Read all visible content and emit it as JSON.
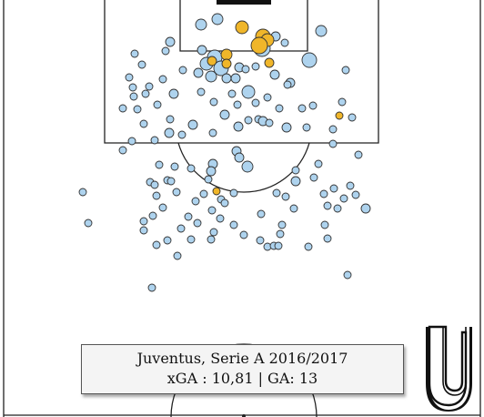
{
  "caption": {
    "title": "Juventus, Serie A 2016/2017",
    "stats": "xGA : 10,81 | GA: 13"
  },
  "colors": {
    "no_goal": "#aed3ee",
    "goal": "#f0b62a",
    "outline": "#333333",
    "pitch_line": "#222222"
  },
  "logo": {
    "icon": "juventus-u-icon"
  },
  "chart_data": {
    "type": "scatter",
    "title": "Juventus, Serie A 2016/2017",
    "series": [
      {
        "name": "",
        "outcome": "no goal",
        "points": [
          {
            "x": 221,
            "y": 27,
            "r": 6
          },
          {
            "x": 239,
            "y": 21,
            "r": 6
          },
          {
            "x": 313,
            "y": 47,
            "r": 4
          },
          {
            "x": 303,
            "y": 40,
            "r": 5
          },
          {
            "x": 353,
            "y": 34,
            "r": 6
          },
          {
            "x": 187,
            "y": 46,
            "r": 5
          },
          {
            "x": 182,
            "y": 56,
            "r": 4
          },
          {
            "x": 148,
            "y": 59,
            "r": 4
          },
          {
            "x": 156,
            "y": 71,
            "r": 4
          },
          {
            "x": 340,
            "y": 66,
            "r": 8
          },
          {
            "x": 288,
            "y": 53,
            "r": 9
          },
          {
            "x": 236,
            "y": 63,
            "r": 8
          },
          {
            "x": 227,
            "y": 70,
            "r": 7
          },
          {
            "x": 222,
            "y": 55,
            "r": 5
          },
          {
            "x": 243,
            "y": 75,
            "r": 8
          },
          {
            "x": 232,
            "y": 84,
            "r": 6
          },
          {
            "x": 218,
            "y": 80,
            "r": 5
          },
          {
            "x": 263,
            "y": 74,
            "r": 5
          },
          {
            "x": 270,
            "y": 76,
            "r": 4
          },
          {
            "x": 281,
            "y": 73,
            "r": 4
          },
          {
            "x": 259,
            "y": 86,
            "r": 5
          },
          {
            "x": 249,
            "y": 86,
            "r": 5
          },
          {
            "x": 273,
            "y": 101,
            "r": 7
          },
          {
            "x": 255,
            "y": 103,
            "r": 4
          },
          {
            "x": 302,
            "y": 82,
            "r": 5
          },
          {
            "x": 319,
            "y": 91,
            "r": 5
          },
          {
            "x": 316,
            "y": 93,
            "r": 4
          },
          {
            "x": 380,
            "y": 77,
            "r": 4
          },
          {
            "x": 142,
            "y": 85,
            "r": 4
          },
          {
            "x": 179,
            "y": 87,
            "r": 4
          },
          {
            "x": 201,
            "y": 77,
            "r": 4
          },
          {
            "x": 164,
            "y": 95,
            "r": 4
          },
          {
            "x": 146,
            "y": 96,
            "r": 4
          },
          {
            "x": 191,
            "y": 103,
            "r": 5
          },
          {
            "x": 221,
            "y": 101,
            "r": 4
          },
          {
            "x": 160,
            "y": 103,
            "r": 4
          },
          {
            "x": 147,
            "y": 106,
            "r": 4
          },
          {
            "x": 173,
            "y": 115,
            "r": 4
          },
          {
            "x": 135,
            "y": 119,
            "r": 4
          },
          {
            "x": 151,
            "y": 120,
            "r": 4
          },
          {
            "x": 235,
            "y": 112,
            "r": 4
          },
          {
            "x": 261,
            "y": 115,
            "r": 4
          },
          {
            "x": 281,
            "y": 113,
            "r": 4
          },
          {
            "x": 294,
            "y": 107,
            "r": 4
          },
          {
            "x": 307,
            "y": 119,
            "r": 4
          },
          {
            "x": 332,
            "y": 119,
            "r": 4
          },
          {
            "x": 344,
            "y": 116,
            "r": 4
          },
          {
            "x": 376,
            "y": 112,
            "r": 4
          },
          {
            "x": 387,
            "y": 129,
            "r": 4
          },
          {
            "x": 247,
            "y": 126,
            "r": 5
          },
          {
            "x": 284,
            "y": 131,
            "r": 4
          },
          {
            "x": 289,
            "y": 133,
            "r": 5
          },
          {
            "x": 296,
            "y": 135,
            "r": 4
          },
          {
            "x": 273,
            "y": 132,
            "r": 4
          },
          {
            "x": 262,
            "y": 139,
            "r": 5
          },
          {
            "x": 315,
            "y": 140,
            "r": 5
          },
          {
            "x": 337,
            "y": 140,
            "r": 4
          },
          {
            "x": 366,
            "y": 142,
            "r": 4
          },
          {
            "x": 158,
            "y": 136,
            "r": 4
          },
          {
            "x": 187,
            "y": 131,
            "r": 4
          },
          {
            "x": 212,
            "y": 137,
            "r": 5
          },
          {
            "x": 234,
            "y": 146,
            "r": 4
          },
          {
            "x": 186,
            "y": 146,
            "r": 5
          },
          {
            "x": 200,
            "y": 148,
            "r": 4
          },
          {
            "x": 170,
            "y": 154,
            "r": 4
          },
          {
            "x": 145,
            "y": 155,
            "r": 4
          },
          {
            "x": 135,
            "y": 165,
            "r": 4
          },
          {
            "x": 260,
            "y": 166,
            "r": 5
          },
          {
            "x": 263,
            "y": 173,
            "r": 5
          },
          {
            "x": 272,
            "y": 183,
            "r": 6
          },
          {
            "x": 234,
            "y": 180,
            "r": 5
          },
          {
            "x": 232,
            "y": 188,
            "r": 5
          },
          {
            "x": 366,
            "y": 158,
            "r": 4
          },
          {
            "x": 394,
            "y": 170,
            "r": 4
          },
          {
            "x": 175,
            "y": 181,
            "r": 4
          },
          {
            "x": 192,
            "y": 183,
            "r": 4
          },
          {
            "x": 210,
            "y": 185,
            "r": 4
          },
          {
            "x": 325,
            "y": 187,
            "r": 4
          },
          {
            "x": 350,
            "y": 180,
            "r": 4
          },
          {
            "x": 165,
            "y": 200,
            "r": 4
          },
          {
            "x": 170,
            "y": 203,
            "r": 4
          },
          {
            "x": 184,
            "y": 198,
            "r": 4
          },
          {
            "x": 188,
            "y": 199,
            "r": 4
          },
          {
            "x": 229,
            "y": 197,
            "r": 4
          },
          {
            "x": 325,
            "y": 199,
            "r": 5
          },
          {
            "x": 345,
            "y": 195,
            "r": 4
          },
          {
            "x": 91,
            "y": 211,
            "r": 4
          },
          {
            "x": 172,
            "y": 215,
            "r": 4
          },
          {
            "x": 194,
            "y": 211,
            "r": 4
          },
          {
            "x": 224,
            "y": 213,
            "r": 4
          },
          {
            "x": 257,
            "y": 212,
            "r": 4
          },
          {
            "x": 304,
            "y": 212,
            "r": 4
          },
          {
            "x": 314,
            "y": 216,
            "r": 4
          },
          {
            "x": 356,
            "y": 213,
            "r": 4
          },
          {
            "x": 367,
            "y": 207,
            "r": 4
          },
          {
            "x": 385,
            "y": 204,
            "r": 4
          },
          {
            "x": 215,
            "y": 221,
            "r": 4
          },
          {
            "x": 243,
            "y": 219,
            "r": 4
          },
          {
            "x": 247,
            "y": 223,
            "r": 4
          },
          {
            "x": 378,
            "y": 218,
            "r": 4
          },
          {
            "x": 391,
            "y": 214,
            "r": 4
          },
          {
            "x": 179,
            "y": 228,
            "r": 4
          },
          {
            "x": 233,
            "y": 231,
            "r": 4
          },
          {
            "x": 323,
            "y": 229,
            "r": 4
          },
          {
            "x": 360,
            "y": 226,
            "r": 4
          },
          {
            "x": 371,
            "y": 229,
            "r": 4
          },
          {
            "x": 402,
            "y": 229,
            "r": 5
          },
          {
            "x": 168,
            "y": 237,
            "r": 4
          },
          {
            "x": 207,
            "y": 238,
            "r": 4
          },
          {
            "x": 242,
            "y": 240,
            "r": 4
          },
          {
            "x": 287,
            "y": 235,
            "r": 4
          },
          {
            "x": 97,
            "y": 245,
            "r": 4
          },
          {
            "x": 158,
            "y": 243,
            "r": 4
          },
          {
            "x": 217,
            "y": 245,
            "r": 4
          },
          {
            "x": 257,
            "y": 247,
            "r": 4
          },
          {
            "x": 310,
            "y": 247,
            "r": 4
          },
          {
            "x": 357,
            "y": 247,
            "r": 4
          },
          {
            "x": 158,
            "y": 253,
            "r": 4
          },
          {
            "x": 199,
            "y": 251,
            "r": 4
          },
          {
            "x": 235,
            "y": 255,
            "r": 4
          },
          {
            "x": 268,
            "y": 258,
            "r": 4
          },
          {
            "x": 308,
            "y": 257,
            "r": 4
          },
          {
            "x": 184,
            "y": 264,
            "r": 4
          },
          {
            "x": 210,
            "y": 263,
            "r": 4
          },
          {
            "x": 232,
            "y": 263,
            "r": 4
          },
          {
            "x": 286,
            "y": 264,
            "r": 4
          },
          {
            "x": 294,
            "y": 271,
            "r": 4
          },
          {
            "x": 301,
            "y": 270,
            "r": 4
          },
          {
            "x": 306,
            "y": 270,
            "r": 4
          },
          {
            "x": 360,
            "y": 262,
            "r": 4
          },
          {
            "x": 172,
            "y": 269,
            "r": 4
          },
          {
            "x": 339,
            "y": 271,
            "r": 4
          },
          {
            "x": 195,
            "y": 281,
            "r": 4
          },
          {
            "x": 382,
            "y": 302,
            "r": 4
          },
          {
            "x": 167,
            "y": 316,
            "r": 4
          }
        ]
      },
      {
        "name": "",
        "outcome": "goal",
        "points": [
          {
            "x": 266,
            "y": 30,
            "r": 7
          },
          {
            "x": 289,
            "y": 40,
            "r": 8
          },
          {
            "x": 294,
            "y": 44,
            "r": 7
          },
          {
            "x": 285,
            "y": 50,
            "r": 9
          },
          {
            "x": 249,
            "y": 60,
            "r": 6
          },
          {
            "x": 233,
            "y": 67,
            "r": 5
          },
          {
            "x": 249,
            "y": 70,
            "r": 5
          },
          {
            "x": 296,
            "y": 69,
            "r": 5
          },
          {
            "x": 373,
            "y": 127,
            "r": 4
          },
          {
            "x": 238,
            "y": 210,
            "r": 4
          }
        ]
      }
    ]
  }
}
